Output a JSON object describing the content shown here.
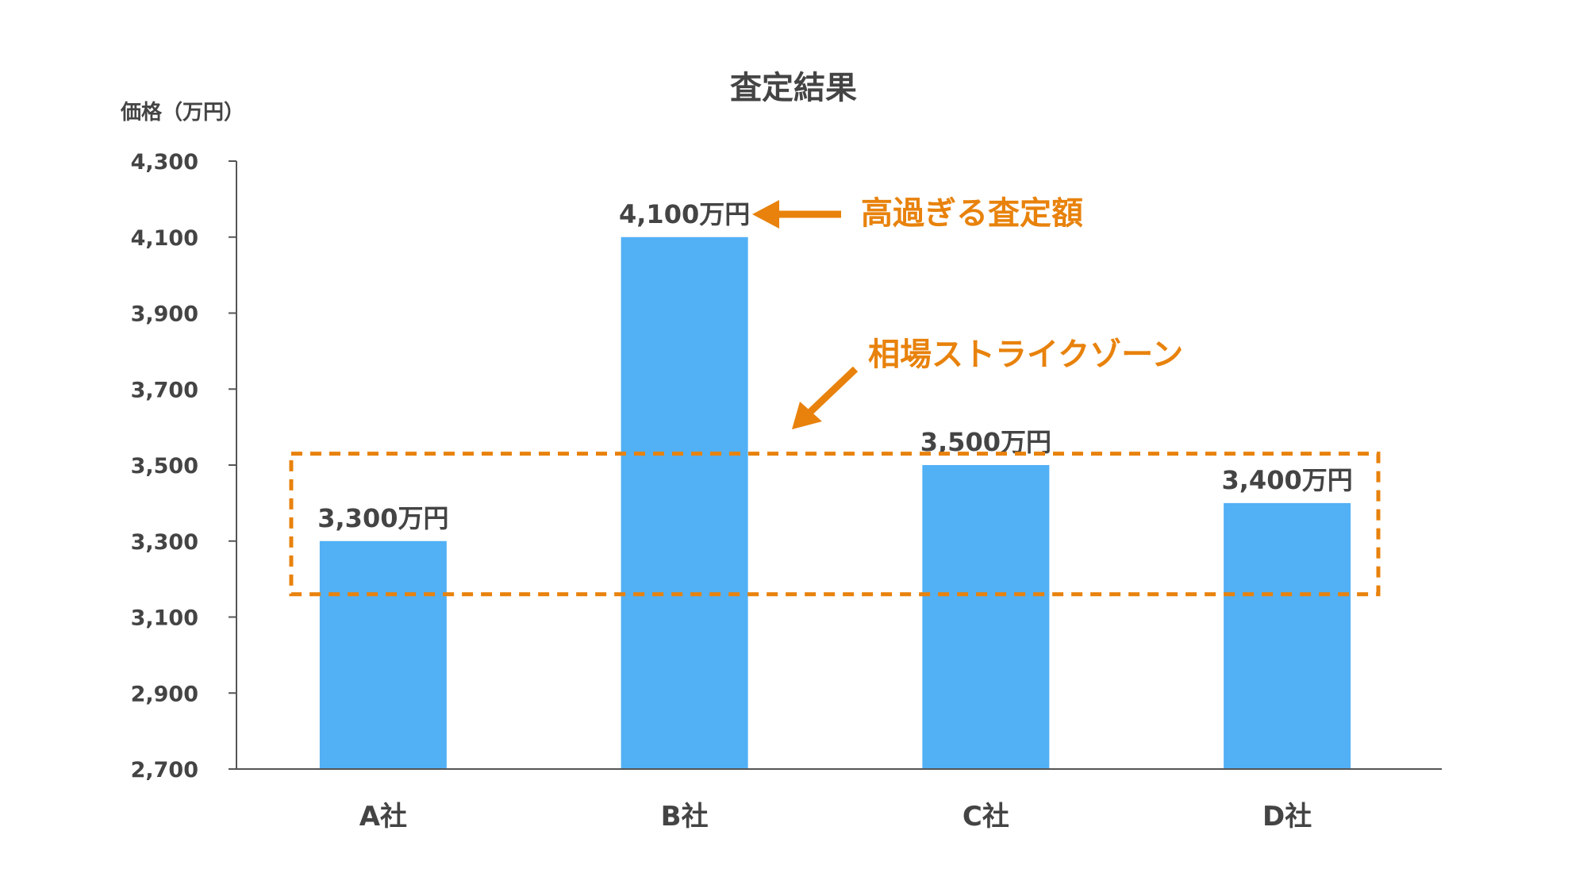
{
  "chart_data": {
    "type": "bar",
    "title": "査定結果",
    "ylabel": "価格（万円）",
    "xlabel": "",
    "categories": [
      "A社",
      "B社",
      "C社",
      "D社"
    ],
    "values": [
      3300,
      4100,
      3500,
      3400
    ],
    "data_labels": [
      "3,300万円",
      "4,100万円",
      "3,500万円",
      "3,400万円"
    ],
    "ylim": [
      2700,
      4300
    ],
    "yticks": [
      2700,
      2900,
      3100,
      3300,
      3500,
      3700,
      3900,
      4100,
      4300
    ],
    "ytick_labels": [
      "2,700",
      "2,900",
      "3,100",
      "3,300",
      "3,500",
      "3,700",
      "3,900",
      "4,100",
      "4,300"
    ],
    "grid": false,
    "bar_color": "#52b0f5",
    "annotations": {
      "too_high": {
        "text": "高過ぎる査定額",
        "color": "#e8820c"
      },
      "strike_zone": {
        "text": "相場ストライクゾーン",
        "color": "#e8820c",
        "range": [
          3160,
          3530
        ]
      }
    }
  }
}
